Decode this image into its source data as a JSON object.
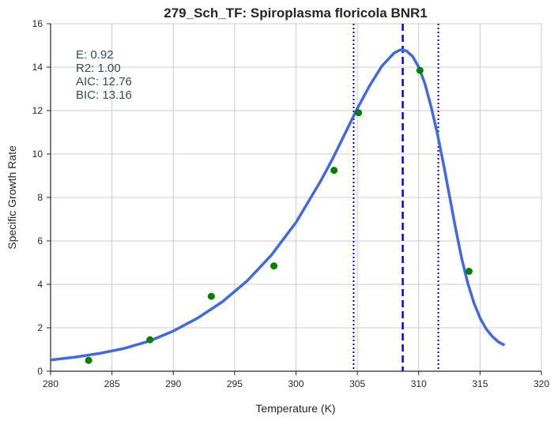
{
  "chart_data": {
    "type": "scatter",
    "title": "279_Sch_TF: Spiroplasma floricola BNR1",
    "xlabel": "Temperature (K)",
    "ylabel": "Specific Growth Rate",
    "xlim": [
      280,
      320
    ],
    "ylim": [
      0,
      16
    ],
    "xticks": [
      280,
      285,
      290,
      295,
      300,
      305,
      310,
      315,
      320
    ],
    "yticks": [
      0,
      2,
      4,
      6,
      8,
      10,
      12,
      14,
      16
    ],
    "grid": true,
    "annotations": [
      "E:  0.92",
      "R2:  1.00",
      "AIC: 12.76",
      "BIC: 13.16"
    ],
    "points": {
      "x": [
        283.1,
        288.1,
        293.1,
        298.2,
        303.1,
        305.1,
        310.1,
        314.1
      ],
      "y": [
        0.5,
        1.45,
        3.45,
        4.85,
        9.25,
        11.9,
        13.85,
        4.6
      ],
      "color": "#008000"
    },
    "fit_curve": {
      "color": "#4169e1",
      "x": [
        280.0,
        282.0,
        284.0,
        286.0,
        288.0,
        290.0,
        292.0,
        294.0,
        296.0,
        298.0,
        300.0,
        302.0,
        303.0,
        304.0,
        305.0,
        306.0,
        307.0,
        308.0,
        308.5,
        309.0,
        309.5,
        310.0,
        310.5,
        311.0,
        311.5,
        312.0,
        312.5,
        313.0,
        313.5,
        314.0,
        314.5,
        315.0,
        315.5,
        316.0,
        316.5,
        317.0
      ],
      "y": [
        0.52,
        0.65,
        0.82,
        1.05,
        1.38,
        1.85,
        2.45,
        3.2,
        4.15,
        5.35,
        6.85,
        8.75,
        9.8,
        10.95,
        12.1,
        13.15,
        14.05,
        14.65,
        14.8,
        14.75,
        14.5,
        14.0,
        13.25,
        12.2,
        11.0,
        9.6,
        8.1,
        6.6,
        5.2,
        4.05,
        3.15,
        2.45,
        1.95,
        1.6,
        1.35,
        1.2
      ]
    },
    "vlines": [
      {
        "x": 308.7,
        "style": "dashed",
        "color": "#0000ee"
      },
      {
        "x": 304.7,
        "style": "dotted",
        "color": "#0000ee"
      },
      {
        "x": 311.6,
        "style": "dotted",
        "color": "#0000ee"
      }
    ]
  }
}
